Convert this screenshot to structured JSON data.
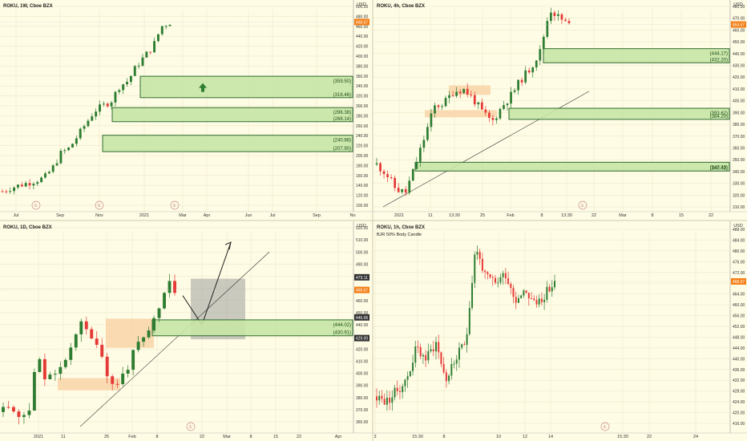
{
  "theme": {
    "bg": "#fffce5",
    "up": "#2e7d32",
    "down": "#e53935",
    "zone_fill": "#c8e6a6",
    "zone_border": "#1b5e20",
    "supply_fill": "#f8d3a8",
    "grid": "#e9e4c6",
    "badge_orange": "#f57f17"
  },
  "panels": [
    {
      "id": "weekly",
      "title": "ROKU, 1W, Cboe BZX",
      "subtitle": "",
      "currency": "USD",
      "y_ticks": [
        "500.00",
        "480.00",
        "460.00",
        "440.00",
        "420.00",
        "400.00",
        "380.00",
        "360.00",
        "340.00",
        "320.00",
        "300.00",
        "280.00",
        "260.00",
        "240.00",
        "220.00",
        "200.00",
        "180.00",
        "160.00",
        "140.00",
        "120.00",
        "100.00"
      ],
      "x_ticks": [
        "Jul",
        "Sep",
        "Nov",
        "2021",
        "Mar",
        "Apr",
        "Jun",
        "Jul",
        "Sep",
        "No"
      ],
      "earnings_markers": [
        "E",
        "E",
        "E"
      ],
      "price_badges": [
        {
          "label": "468.67",
          "value": 468.67,
          "color": "#f57f17"
        }
      ],
      "zones": [
        {
          "low": 316.46,
          "high": 359.5,
          "label_low": "(316.46)",
          "label_high": "(359.50)"
        },
        {
          "low": 268.14,
          "high": 296.38,
          "label_low": "(268.14)",
          "label_high": "(296.38)"
        },
        {
          "low": 207.9,
          "high": 240.88,
          "label_low": "(207.90)",
          "label_high": "(240.88)"
        }
      ],
      "annotations": [
        "up-arrow"
      ]
    },
    {
      "id": "h4",
      "title": "ROKU, 4h, Cboe BZX",
      "subtitle": "",
      "currency": "USD",
      "y_ticks": [
        "480.00",
        "470.00",
        "460.00",
        "450.00",
        "440.00",
        "430.00",
        "420.00",
        "410.00",
        "400.00",
        "390.00",
        "380.00",
        "370.00",
        "360.00",
        "350.00",
        "340.00",
        "330.00",
        "320.00",
        "310.00"
      ],
      "x_ticks": [
        "2021",
        "11",
        "13:30",
        "25",
        "Feb",
        "8",
        "13:30",
        "22",
        "Mar",
        "8",
        "15",
        "22"
      ],
      "earnings_markers": [
        "E"
      ],
      "price_badges": [
        {
          "label": "464.67",
          "value": 464.67,
          "color": "#f57f17"
        }
      ],
      "zones": [
        {
          "low": 432.2,
          "high": 444.17,
          "label_low": "(432.20)",
          "label_high": "(444.17)"
        },
        {
          "low": 384.2,
          "high": 393.62,
          "label_low": "(384.20)",
          "label_high": "(393.62)"
        },
        {
          "low": 340.43,
          "high": 347.83,
          "label_low": "(340.43)",
          "label_high": "(347.83)"
        }
      ]
    },
    {
      "id": "daily",
      "title": "ROKU, 1D, Cboe BZX",
      "subtitle": "",
      "currency": "USD",
      "y_ticks": [
        "520.00",
        "510.00",
        "500.00",
        "490.00",
        "480.00",
        "470.00",
        "460.00",
        "450.00",
        "440.00",
        "430.00",
        "420.00",
        "410.00",
        "400.00",
        "390.00",
        "380.00",
        "370.00",
        "360.00"
      ],
      "x_ticks": [
        "2021",
        "11",
        "25",
        "Feb",
        "8",
        "22",
        "Mar",
        "8",
        "15",
        "22",
        "Apr"
      ],
      "earnings_markers": [
        "E"
      ],
      "price_badges": [
        {
          "label": "479.11",
          "value": 479.11,
          "color": "#333333"
        },
        {
          "label": "468.67",
          "value": 468.67,
          "color": "#f57f17"
        },
        {
          "label": "446.06",
          "value": 446.06,
          "color": "#333333"
        },
        {
          "label": "429.00",
          "value": 429.0,
          "color": "#333333"
        }
      ],
      "zones": [
        {
          "low": 430.91,
          "high": 444.02,
          "label_low": "(430.91)",
          "label_high": "(444.02)"
        }
      ]
    },
    {
      "id": "h1",
      "title": "ROKU, 1h, Cboe BZX",
      "subtitle": "BJR 50% Body Candle",
      "currency": "USD",
      "y_ticks": [
        "488.00",
        "484.00",
        "480.00",
        "476.00",
        "472.00",
        "468.00",
        "464.00",
        "460.00",
        "456.00",
        "452.00",
        "448.00",
        "444.00",
        "440.00",
        "436.00",
        "432.00",
        "428.00",
        "424.00",
        "420.00",
        "416.00"
      ],
      "x_ticks": [
        "3",
        "15:30",
        "8",
        "10",
        "12",
        "14",
        "15:30",
        "22",
        "24"
      ],
      "earnings_markers": [
        "E"
      ],
      "price_badges": [
        {
          "label": "468.67",
          "value": 468.67,
          "color": "#f57f17"
        }
      ],
      "zones": []
    }
  ]
}
